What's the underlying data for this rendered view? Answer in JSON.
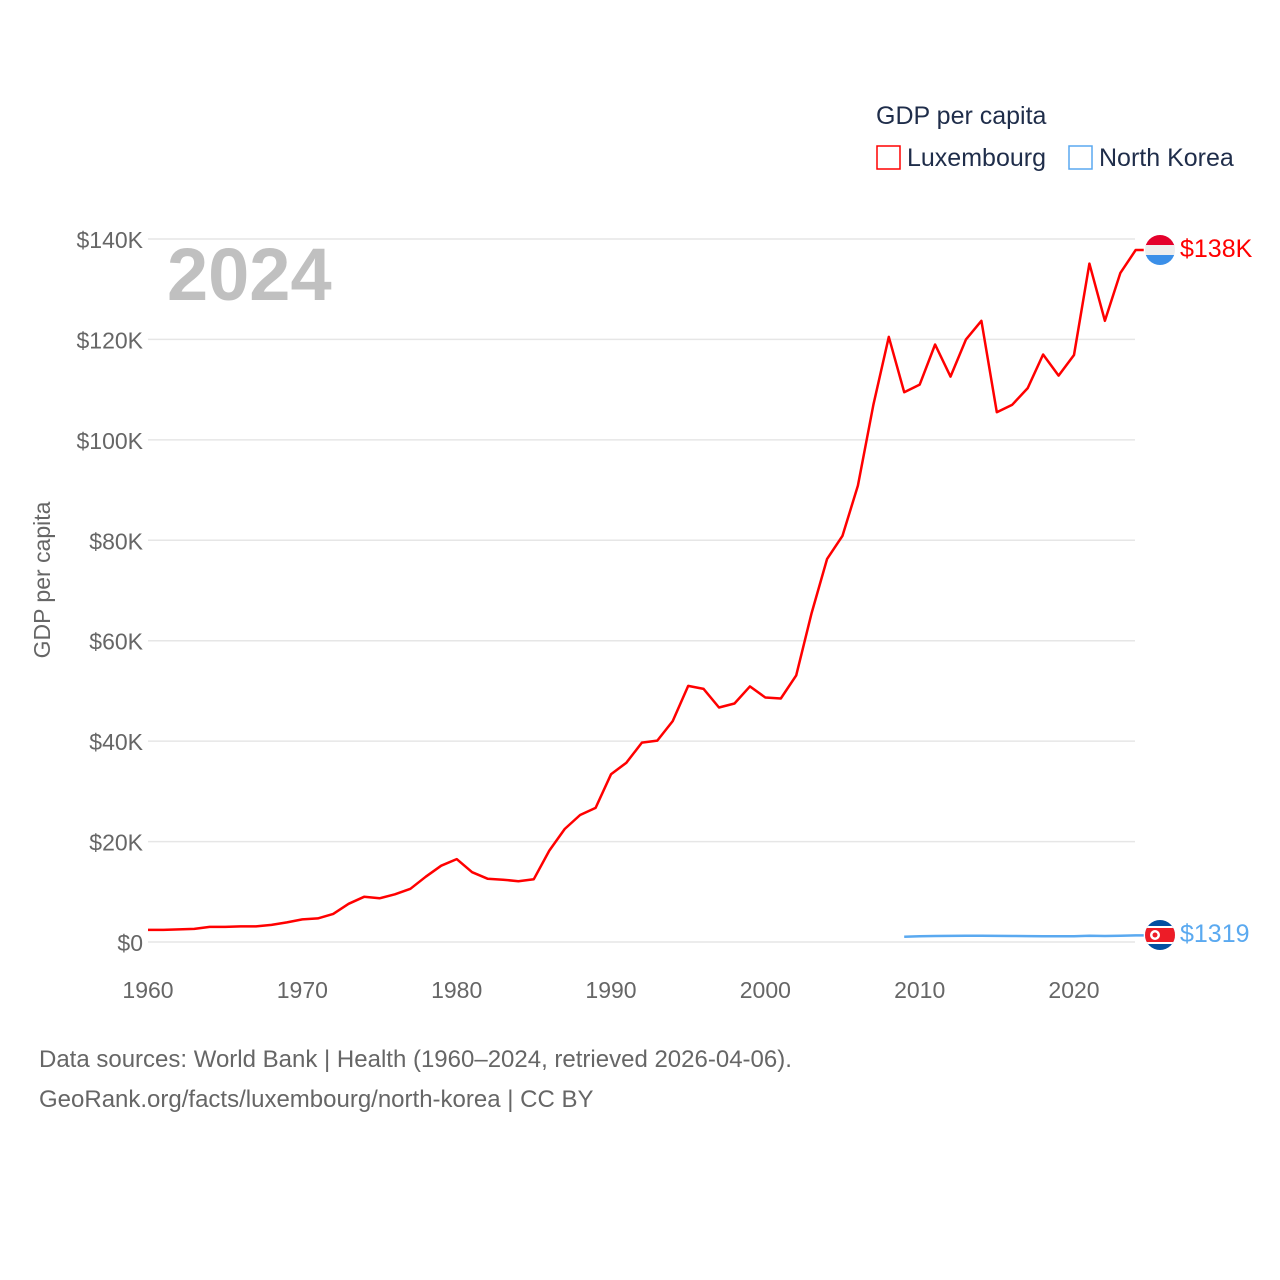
{
  "chart_data": {
    "type": "line",
    "title": "GDP per capita",
    "year_label": "2024",
    "xlabel": "",
    "ylabel": "GDP per capita",
    "xlim": [
      1960,
      2024
    ],
    "ylim": [
      0,
      140000
    ],
    "x_ticks": [
      1960,
      1970,
      1980,
      1990,
      2000,
      2010,
      2020
    ],
    "x_tick_labels": [
      "1960",
      "1970",
      "1980",
      "1990",
      "2000",
      "2010",
      "2020"
    ],
    "y_ticks": [
      0,
      20000,
      40000,
      60000,
      80000,
      100000,
      120000,
      140000
    ],
    "y_tick_labels": [
      "$0",
      "$20K",
      "$40K",
      "$60K",
      "$80K",
      "$100K",
      "$120K",
      "$140K"
    ],
    "grid": true,
    "legend_position": "top-right",
    "series": [
      {
        "name": "Luxembourg",
        "color": "#ff0000",
        "flag_colors": [
          "#e4002b",
          "#eeeeee",
          "#3b8fe8"
        ],
        "end_label": "$138K",
        "start_year": 1960,
        "values": [
          2400,
          2400,
          2500,
          2600,
          3000,
          3000,
          3100,
          3100,
          3400,
          3900,
          4500,
          4700,
          5600,
          7600,
          9000,
          8700,
          9500,
          10600,
          13000,
          15200,
          16500,
          13900,
          12600,
          12400,
          12100,
          12500,
          18200,
          22500,
          25300,
          26700,
          33400,
          35700,
          39700,
          40100,
          44000,
          51000,
          50400,
          46700,
          47500,
          50900,
          48700,
          48500,
          53100,
          65500,
          76300,
          80900,
          90900,
          107000,
          120500,
          109500,
          111000,
          119000,
          112600,
          120000,
          123700,
          105500,
          107000,
          110300,
          117000,
          112800,
          116900,
          135100,
          123700,
          133200,
          137800
        ]
      },
      {
        "name": "North Korea",
        "color": "#5aa9f0",
        "flag_colors": [
          "#024fa2",
          "#ffffff",
          "#ed1c27"
        ],
        "end_label": "$1319",
        "start_year": 2009,
        "values": [
          1040,
          1140,
          1200,
          1210,
          1230,
          1230,
          1220,
          1190,
          1180,
          1150,
          1140,
          1160,
          1250,
          1200,
          1260,
          1319
        ]
      }
    ]
  },
  "footer": {
    "line1": "Data sources: World Bank | Health (1960–2024, retrieved 2026-04-06).",
    "line2": "GeoRank.org/facts/luxembourg/north-korea | CC BY"
  }
}
